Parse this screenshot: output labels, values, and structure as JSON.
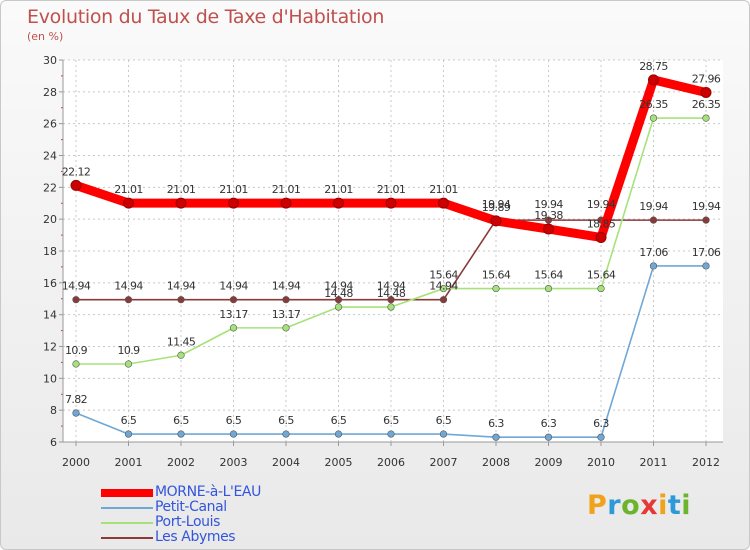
{
  "title": "Evolution du Taux de Taxe d'Habitation",
  "subtitle": "(en %)",
  "logo": {
    "text": "Proxiti",
    "colors": [
      "#f0a21b",
      "#2c9ad8",
      "#6bb42c",
      "#e53935",
      "#f0a21b",
      "#2c9ad8",
      "#6bb42c"
    ]
  },
  "chart_data": {
    "type": "line",
    "x": [
      "2000",
      "2001",
      "2002",
      "2003",
      "2004",
      "2005",
      "2006",
      "2007",
      "2008",
      "2009",
      "2010",
      "2011",
      "2012"
    ],
    "ylim": [
      6,
      30
    ],
    "yticks": [
      6,
      8,
      10,
      12,
      14,
      16,
      18,
      20,
      22,
      24,
      26,
      28,
      30
    ],
    "grid": true,
    "legend_position": "bottom-left",
    "series": [
      {
        "name": "MORNE-à-L'EAU",
        "color": "#ff0000",
        "values": [
          22.12,
          21.01,
          21.01,
          21.01,
          21.01,
          21.01,
          21.01,
          21.01,
          19.89,
          19.38,
          18.85,
          28.75,
          27.96
        ],
        "labels": [
          "22.12",
          "21.01",
          "21.01",
          "21.01",
          "21.01",
          "21.01",
          "21.01",
          "21.01",
          "19.89",
          "19.38",
          "18.85",
          "28.75",
          "27.96"
        ]
      },
      {
        "name": "Petit-Canal",
        "color": "#6fa8d6",
        "values": [
          7.82,
          6.5,
          6.5,
          6.5,
          6.5,
          6.5,
          6.5,
          6.5,
          6.3,
          6.3,
          6.3,
          17.06,
          17.06
        ],
        "labels": [
          "7.82",
          "6.5",
          "6.5",
          "6.5",
          "6.5",
          "6.5",
          "6.5",
          "6.5",
          "6.3",
          "6.3",
          "6.3",
          "17.06",
          "17.06"
        ]
      },
      {
        "name": "Port-Louis",
        "color": "#a6e27a",
        "values": [
          10.9,
          10.9,
          11.45,
          13.17,
          13.17,
          14.48,
          14.48,
          15.64,
          15.64,
          15.64,
          15.64,
          26.35,
          26.35
        ],
        "labels": [
          "10.9",
          "10.9",
          "11.45",
          "13.17",
          "13.17",
          "14.48",
          "14.48",
          "15.64",
          "15.64",
          "15.64",
          "15.64",
          "26.35",
          "26.35"
        ]
      },
      {
        "name": "Les Abymes",
        "color": "#8b3a3a",
        "values": [
          14.94,
          14.94,
          14.94,
          14.94,
          14.94,
          14.94,
          14.94,
          14.94,
          19.94,
          19.94,
          19.94,
          19.94,
          19.94
        ],
        "labels": [
          "14.94",
          "14.94",
          "14.94",
          "14.94",
          "14.94",
          "14.94",
          "14.94",
          "14.94",
          "19.94",
          "19.94",
          "19.94",
          "19.94",
          "19.94"
        ]
      }
    ]
  }
}
